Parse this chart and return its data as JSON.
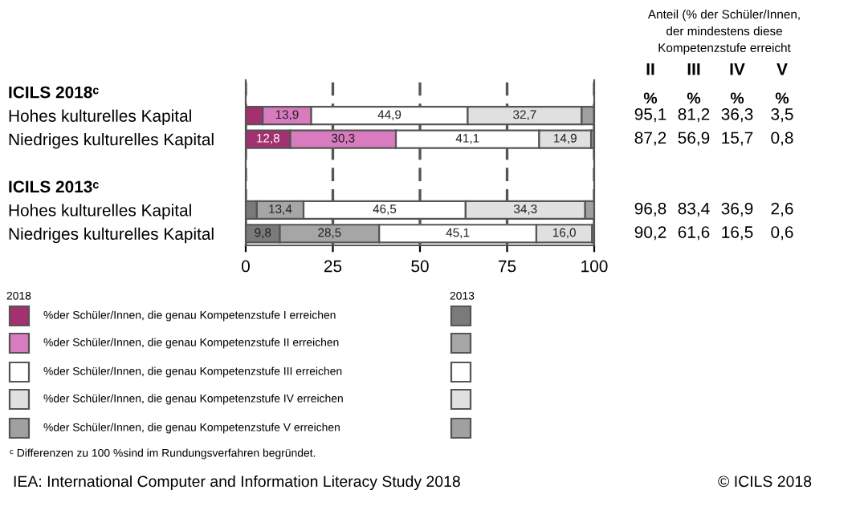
{
  "chart_data": {
    "type": "bar",
    "orientation": "horizontal",
    "stacked": true,
    "categories": [
      "ICILS 2018ᶜ",
      "Hohes kulturelles Kapital",
      "Niedriges kulturelles Kapital",
      null,
      "ICILS 2013ᶜ",
      "Hohes kulturelles Kapital",
      "Niedriges kulturelles Kapital"
    ],
    "series": [
      {
        "name": "%der Schüler/Innen, die genau Kompetenzstufe I erreichen",
        "colors": [
          null,
          "#a3306f",
          "#a3306f",
          null,
          null,
          "#7a7a7a",
          "#7a7a7a"
        ],
        "values": [
          null,
          4.9,
          12.8,
          null,
          null,
          3.2,
          9.8
        ],
        "value_labels": [
          null,
          null,
          "12,8",
          null,
          null,
          null,
          "9,8"
        ]
      },
      {
        "name": "%der Schüler/Innen, die genau Kompetenzstufe II erreichen",
        "colors": [
          null,
          "#d97bbf",
          "#d97bbf",
          null,
          null,
          "#a6a6a6",
          "#a6a6a6"
        ],
        "values": [
          null,
          13.9,
          30.3,
          null,
          null,
          13.4,
          28.5
        ],
        "value_labels": [
          null,
          "13,9",
          "30,3",
          null,
          null,
          "13,4",
          "28,5"
        ]
      },
      {
        "name": "%der Schüler/Innen, die genau Kompetenzstufe III erreichen",
        "colors": [
          null,
          "#ffffff",
          "#ffffff",
          null,
          null,
          "#ffffff",
          "#ffffff"
        ],
        "values": [
          null,
          44.9,
          41.1,
          null,
          null,
          46.5,
          45.1
        ],
        "value_labels": [
          null,
          "44,9",
          "41,1",
          null,
          null,
          "46,5",
          "45,1"
        ]
      },
      {
        "name": "%der Schüler/Innen, die genau Kompetenzstufe IV erreichen",
        "colors": [
          null,
          "#e0e0e0",
          "#e0e0e0",
          null,
          null,
          "#e0e0e0",
          "#e0e0e0"
        ],
        "values": [
          null,
          32.7,
          14.9,
          null,
          null,
          34.3,
          16.0
        ],
        "value_labels": [
          null,
          "32,7",
          "14,9",
          null,
          null,
          "34,3",
          "16,0"
        ]
      },
      {
        "name": "%der Schüler/Innen, die genau Kompetenzstufe V erreichen",
        "colors": [
          null,
          "#a0a0a0",
          "#a0a0a0",
          null,
          null,
          "#a0a0a0",
          "#a0a0a0"
        ],
        "values": [
          null,
          3.5,
          0.8,
          null,
          null,
          2.6,
          0.6
        ],
        "value_labels": [
          null,
          null,
          null,
          null,
          null,
          null,
          null
        ]
      }
    ],
    "legend": "bottom left",
    "xlim": [
      0,
      100
    ],
    "xticks": [
      0,
      25,
      50,
      75,
      100
    ],
    "grid": "x",
    "line_style": "dashed",
    "annotations": [
      "Anteil (% der Schüler/Innen, der mindestens diese Kompetenzstufe erreicht",
      "II",
      "III",
      "IV",
      "V",
      "%",
      "%",
      "%",
      "%",
      "95,1",
      "81,2",
      "36,3",
      "3,5",
      "87,2",
      "56,9",
      "15,7",
      "0,8",
      "96,8",
      "83,4",
      "36,9",
      "2,6",
      "90,2",
      "61,6",
      "16,5",
      "0,6",
      "2018",
      "2013",
      "ᶜ Differenzen zu 100 %sind im Rundungsverfahren begründet.",
      "IEA: International Computer and Information Literacy Study 2018",
      "© ICILS 2018"
    ]
  }
}
